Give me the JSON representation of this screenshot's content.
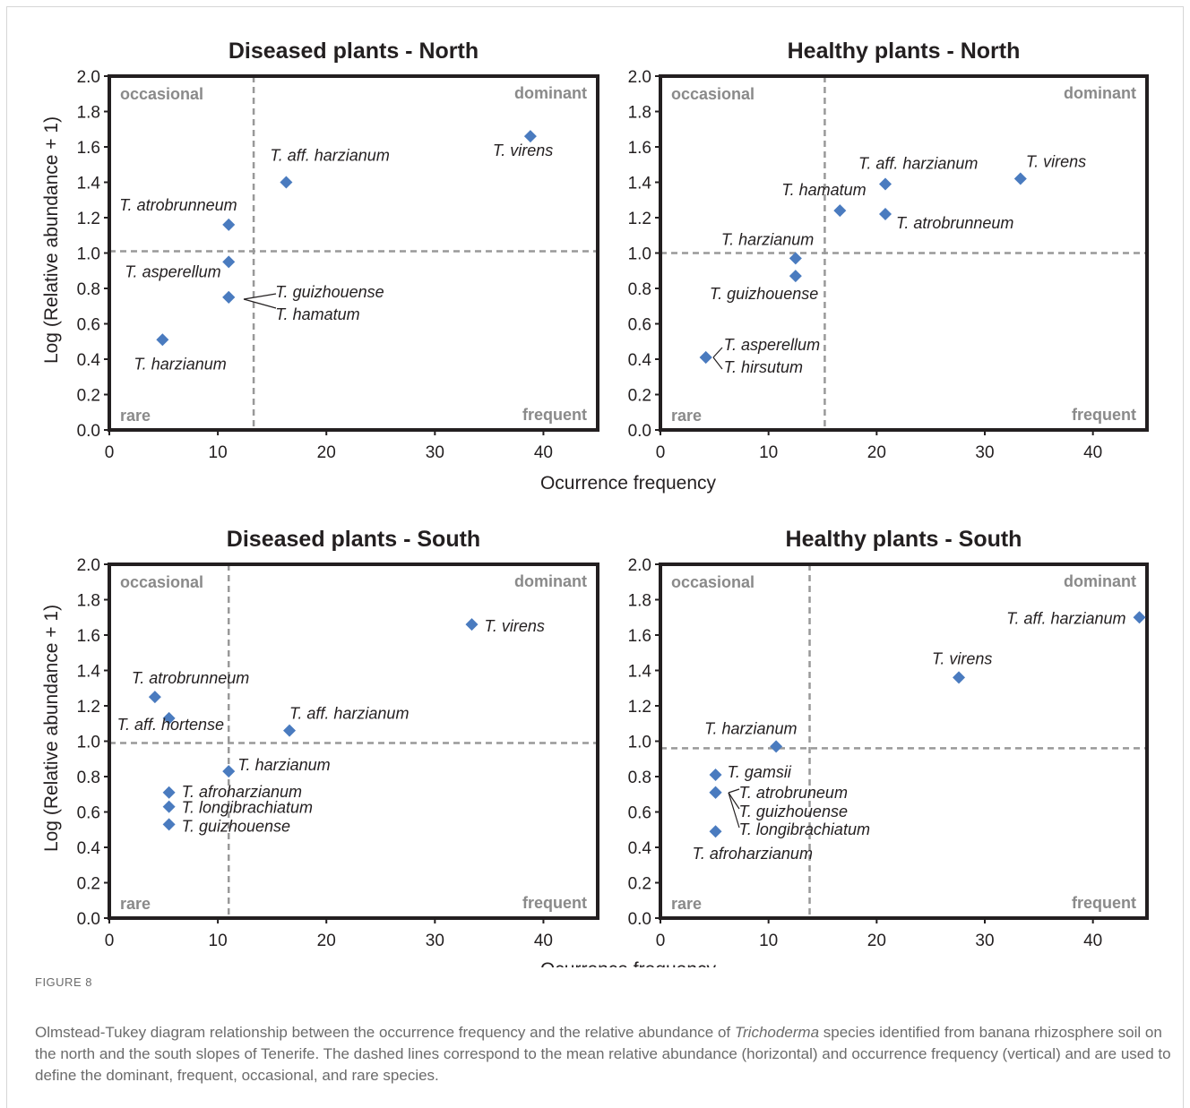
{
  "figure": {
    "label": "FIGURE 8",
    "caption_pre": "Olmstead-Tukey diagram relationship between the occurrence frequency and the relative abundance of ",
    "caption_italic": "Trichoderma",
    "caption_post": " species identified from banana rhizosphere soil on the north and the south slopes of Tenerife. The dashed lines correspond to the mean relative abundance (horizontal) and occurrence frequency (vertical) and are used to define the dominant, frequent, occasional, and rare species."
  },
  "x_axis_label": "Ocurrence frequency",
  "y_axis_label": "Log (Relative abundance + 1)",
  "colors": {
    "marker": "#4a7bbf",
    "frame": "#231f20",
    "dash": "#999999",
    "quadrant_text": "#8a8a8a"
  },
  "chart_data": [
    {
      "type": "scatter",
      "title": "Diseased plants - North",
      "xlim": [
        0,
        45
      ],
      "ylim": [
        0,
        2
      ],
      "xticks": [
        "0",
        "10",
        "20",
        "30",
        "40"
      ],
      "yticks": [
        "0.0",
        "0.2",
        "0.4",
        "0.6",
        "0.8",
        "1.0",
        "1.2",
        "1.4",
        "1.6",
        "1.8",
        "2.0"
      ],
      "grid": false,
      "mean_x": 13.3,
      "mean_y": 1.01,
      "quadrants": {
        "occasional": "occasional",
        "dominant": "dominant",
        "rare": "rare",
        "frequent": "frequent"
      },
      "points": [
        {
          "label": "T. virens",
          "x": 38.8,
          "y": 1.66
        },
        {
          "label": "T. aff. harzianum",
          "x": 16.3,
          "y": 1.4
        },
        {
          "label": "T. atrobrunneum",
          "x": 11.0,
          "y": 1.16
        },
        {
          "label": "T. asperellum",
          "x": 11.0,
          "y": 0.95
        },
        {
          "label": "T. guizhouense",
          "x": 11.0,
          "y": 0.75
        },
        {
          "label": "T. hamatum",
          "x": 11.0,
          "y": 0.75
        },
        {
          "label": "T. harzianum",
          "x": 4.9,
          "y": 0.51
        }
      ]
    },
    {
      "type": "scatter",
      "title": "Healthy plants - North",
      "xlim": [
        0,
        45
      ],
      "ylim": [
        0,
        2
      ],
      "xticks": [
        "0",
        "10",
        "20",
        "30",
        "40"
      ],
      "yticks": [
        "0.0",
        "0.2",
        "0.4",
        "0.6",
        "0.8",
        "1.0",
        "1.2",
        "1.4",
        "1.6",
        "1.8",
        "2.0"
      ],
      "grid": false,
      "mean_x": 15.2,
      "mean_y": 1.0,
      "quadrants": {
        "occasional": "occasional",
        "dominant": "dominant",
        "rare": "rare",
        "frequent": "frequent"
      },
      "points": [
        {
          "label": "T. virens",
          "x": 33.3,
          "y": 1.42
        },
        {
          "label": "T. aff. harzianum",
          "x": 20.8,
          "y": 1.39
        },
        {
          "label": "T. hamatum",
          "x": 16.6,
          "y": 1.24
        },
        {
          "label": "T. atrobrunneum",
          "x": 20.8,
          "y": 1.22
        },
        {
          "label": "T. harzianum",
          "x": 12.5,
          "y": 0.97
        },
        {
          "label": "T. guizhouense",
          "x": 12.5,
          "y": 0.87
        },
        {
          "label": "T. asperellum",
          "x": 4.2,
          "y": 0.41
        },
        {
          "label": "T. hirsutum",
          "x": 4.2,
          "y": 0.41
        }
      ]
    },
    {
      "type": "scatter",
      "title": "Diseased plants - South",
      "xlim": [
        0,
        45
      ],
      "ylim": [
        0,
        2
      ],
      "xticks": [
        "0",
        "10",
        "20",
        "30",
        "40"
      ],
      "yticks": [
        "0.0",
        "0.2",
        "0.4",
        "0.6",
        "0.8",
        "1.0",
        "1.2",
        "1.4",
        "1.6",
        "1.8",
        "2.0"
      ],
      "grid": false,
      "mean_x": 11.0,
      "mean_y": 0.99,
      "quadrants": {
        "occasional": "occasional",
        "dominant": "dominant",
        "rare": "rare",
        "frequent": "frequent"
      },
      "points": [
        {
          "label": "T. virens",
          "x": 33.4,
          "y": 1.66
        },
        {
          "label": "T. atrobrunneum",
          "x": 4.2,
          "y": 1.25
        },
        {
          "label": "T. aff. hortense",
          "x": 5.5,
          "y": 1.13
        },
        {
          "label": "T. aff. harzianum",
          "x": 16.6,
          "y": 1.06
        },
        {
          "label": "T. harzianum",
          "x": 11.0,
          "y": 0.83
        },
        {
          "label": "T. afroharzianum",
          "x": 5.5,
          "y": 0.71
        },
        {
          "label": "T. longibrachiatum",
          "x": 5.5,
          "y": 0.63
        },
        {
          "label": "T. guizhouense",
          "x": 5.5,
          "y": 0.53
        }
      ]
    },
    {
      "type": "scatter",
      "title": "Healthy plants - South",
      "xlim": [
        0,
        45
      ],
      "ylim": [
        0,
        2
      ],
      "xticks": [
        "0",
        "10",
        "20",
        "30",
        "40"
      ],
      "yticks": [
        "0.0",
        "0.2",
        "0.4",
        "0.6",
        "0.8",
        "1.0",
        "1.2",
        "1.4",
        "1.6",
        "1.8",
        "2.0"
      ],
      "grid": false,
      "mean_x": 13.8,
      "mean_y": 0.96,
      "quadrants": {
        "occasional": "occasional",
        "dominant": "dominant",
        "rare": "rare",
        "frequent": "frequent"
      },
      "points": [
        {
          "label": "T. aff. harzianum",
          "x": 44.3,
          "y": 1.7
        },
        {
          "label": "T. virens",
          "x": 27.6,
          "y": 1.36
        },
        {
          "label": "T. harzianum",
          "x": 10.7,
          "y": 0.97
        },
        {
          "label": "T. gamsii",
          "x": 5.1,
          "y": 0.81
        },
        {
          "label": "T. atrobruneum",
          "x": 5.1,
          "y": 0.71
        },
        {
          "label": "T. guizhouense",
          "x": 5.1,
          "y": 0.71
        },
        {
          "label": "T. longibrachiatum",
          "x": 5.1,
          "y": 0.71
        },
        {
          "label": "T. afroharzianum",
          "x": 5.1,
          "y": 0.49
        }
      ]
    }
  ]
}
